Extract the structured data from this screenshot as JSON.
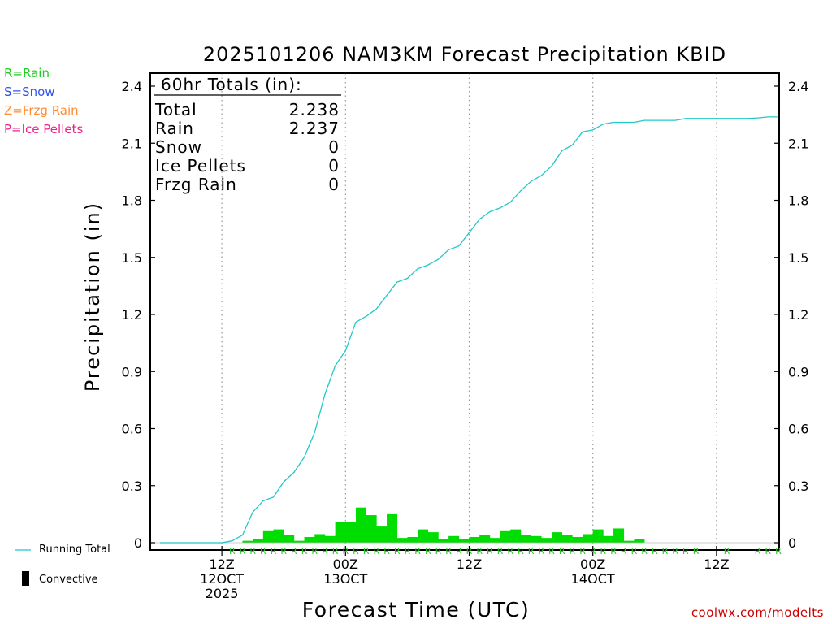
{
  "chart_data": {
    "type": "bar+line",
    "title": "2025101206 NAM3KM Forecast Precipitation KBID",
    "xlabel": "Forecast Time (UTC)",
    "ylabel": "Precipitation (in)",
    "ylim": [
      0,
      2.4
    ],
    "yticks": [
      0,
      0.3,
      0.6,
      0.9,
      1.2,
      1.5,
      1.8,
      2.1,
      2.4
    ],
    "ytick_labels": [
      "0",
      "0.3",
      "0.6",
      "0.9",
      "1.2",
      "1.5",
      "1.8",
      "2.1",
      "2.4"
    ],
    "xlim_hours": [
      0,
      60
    ],
    "xticks": [
      {
        "hour": 6,
        "lines": [
          "12Z",
          "12OCT",
          "2025"
        ]
      },
      {
        "hour": 18,
        "lines": [
          "00Z",
          "13OCT"
        ]
      },
      {
        "hour": 30,
        "lines": [
          "12Z"
        ]
      },
      {
        "hour": 42,
        "lines": [
          "00Z",
          "14OCT"
        ]
      },
      {
        "hour": 54,
        "lines": [
          "12Z"
        ]
      }
    ],
    "grid": "vertical dotted at xticks",
    "hourly_precip_in": [
      0,
      0,
      0,
      0,
      0,
      0,
      0,
      0,
      0.01,
      0.02,
      0.065,
      0.07,
      0.04,
      0.01,
      0.03,
      0.045,
      0.035,
      0.11,
      0.11,
      0.185,
      0.145,
      0.085,
      0.15,
      0.025,
      0.03,
      0.07,
      0.055,
      0.02,
      0.035,
      0.02,
      0.03,
      0.04,
      0.025,
      0.065,
      0.07,
      0.04,
      0.035,
      0.025,
      0.055,
      0.04,
      0.03,
      0.045,
      0.07,
      0.035,
      0.075,
      0.01,
      0.02,
      0,
      0,
      0,
      0,
      0,
      0,
      0,
      0,
      0,
      0,
      0,
      0,
      0
    ],
    "running_total_in": [
      0,
      0,
      0,
      0,
      0,
      0,
      0,
      0.01,
      0.04,
      0.16,
      0.22,
      0.24,
      0.32,
      0.37,
      0.45,
      0.58,
      0.78,
      0.93,
      1.01,
      1.16,
      1.19,
      1.23,
      1.3,
      1.37,
      1.39,
      1.44,
      1.46,
      1.49,
      1.54,
      1.56,
      1.63,
      1.7,
      1.74,
      1.76,
      1.79,
      1.85,
      1.9,
      1.93,
      1.98,
      2.06,
      2.09,
      2.16,
      2.17,
      2.2,
      2.21,
      2.21,
      2.21,
      2.22,
      2.22,
      2.22,
      2.22,
      2.23,
      2.23,
      2.23,
      2.23,
      2.23,
      2.23,
      2.23,
      2.233,
      2.238,
      2.238
    ],
    "ptype_markers": [
      "",
      "",
      "",
      "",
      "",
      "",
      "",
      "R",
      "R",
      "R",
      "R",
      "R",
      "R",
      "R",
      "R",
      "R",
      "R",
      "R",
      "R",
      "R",
      "R",
      "R",
      "R",
      "R",
      "R",
      "R",
      "R",
      "R",
      "R",
      "R",
      "R",
      "R",
      "R",
      "R",
      "R",
      "R",
      "R",
      "R",
      "R",
      "R",
      "R",
      "R",
      "R",
      "R",
      "R",
      "R",
      "R",
      "R",
      "R",
      "R",
      "R",
      "R",
      "R",
      "",
      "",
      "R",
      "",
      "",
      "R",
      "R",
      "R"
    ],
    "totals_box": {
      "header": "60hr Totals (in):",
      "rows": [
        {
          "label": "Total",
          "value": "2.238"
        },
        {
          "label": "Rain",
          "value": "2.237"
        },
        {
          "label": "Snow",
          "value": "0"
        },
        {
          "label": "Ice Pellets",
          "value": "0"
        },
        {
          "label": "Frzg Rain",
          "value": "0"
        }
      ]
    },
    "ptype_legend": [
      {
        "text": "R=Rain",
        "color": "#22cc22"
      },
      {
        "text": "S=Snow",
        "color": "#3355ee"
      },
      {
        "text": "Z=Frzg Rain",
        "color": "#ff8c33"
      },
      {
        "text": "P=Ice Pellets",
        "color": "#ee2288"
      }
    ],
    "series_legend": {
      "running_total": "Running Total",
      "convective": "Convective"
    },
    "colors": {
      "bars": "#00dd00",
      "running_total": "#22c8c8",
      "rain_marker": "#22cc22"
    },
    "credit": "coolwx.com/modelts"
  }
}
